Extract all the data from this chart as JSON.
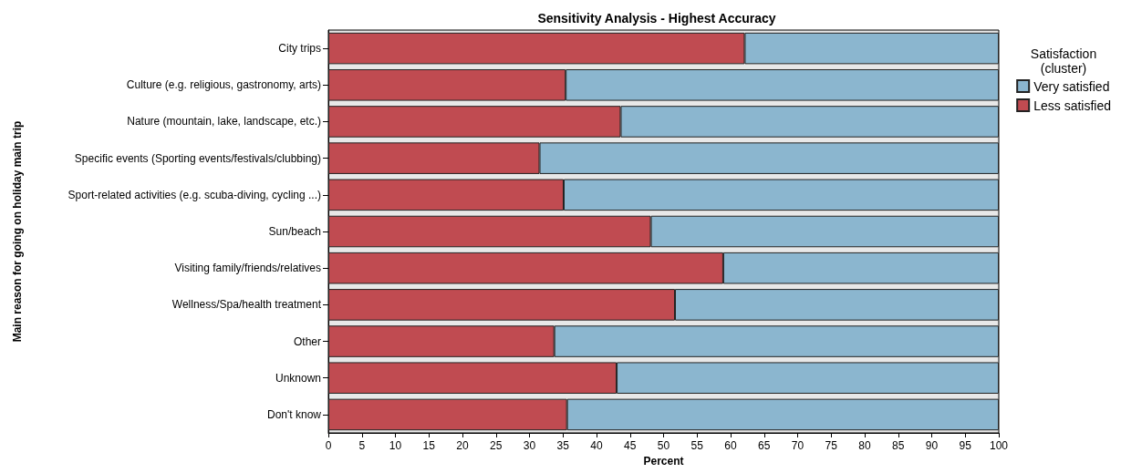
{
  "chart_data": {
    "type": "bar",
    "orientation": "horizontal",
    "stacked": true,
    "title": "Sensitivity Analysis - Highest Accuracy",
    "xlabel": "Percent",
    "ylabel": "Main reason for going on holiday main trip",
    "legend_title": "Satisfaction\n(cluster)",
    "legend": "right",
    "categories": [
      "City trips",
      "Culture (e.g. religious, gastronomy, arts)",
      "Nature (mountain, lake, landscape, etc.)",
      "Specific events (Sporting events/festivals/clubbing)",
      "Sport-related activities (e.g. scuba-diving, cycling ...)",
      "Sun/beach",
      "Visiting family/friends/relatives",
      "Wellness/Spa/health treatment",
      "Other",
      "Unknown",
      "Don't know"
    ],
    "series": [
      {
        "name": "Less satisfied",
        "color": "#c04b51",
        "values": [
          62.1,
          35.4,
          43.6,
          31.5,
          35.1,
          48.1,
          58.9,
          51.7,
          33.7,
          43.0,
          35.6
        ]
      },
      {
        "name": "Very satisfied",
        "color": "#8bb6cf",
        "values": [
          37.9,
          64.6,
          56.4,
          68.5,
          64.9,
          51.9,
          41.1,
          48.3,
          66.3,
          57.0,
          64.4
        ]
      }
    ],
    "xlim": [
      0,
      100
    ],
    "xticks": [
      0,
      5,
      10,
      15,
      20,
      25,
      30,
      35,
      40,
      45,
      50,
      55,
      60,
      65,
      70,
      75,
      80,
      85,
      90,
      95,
      100
    ],
    "grid": false
  }
}
